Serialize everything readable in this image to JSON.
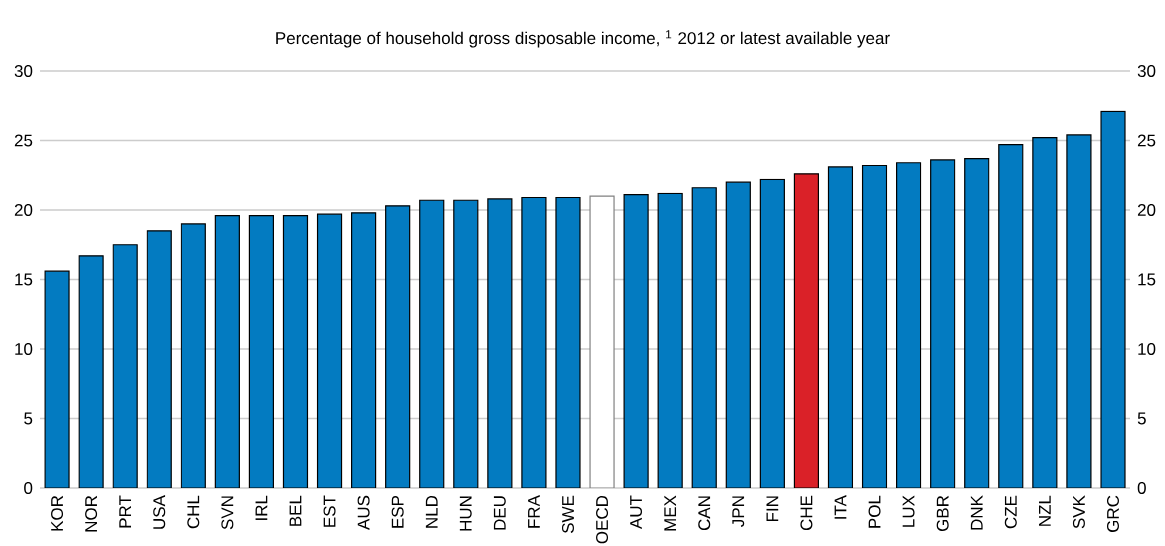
{
  "chart_data": {
    "type": "bar",
    "title": "Percentage of household gross disposable income, $^{1}$ 2012 or latest available year",
    "categories": [
      "KOR",
      "NOR",
      "PRT",
      "USA",
      "CHL",
      "SVN",
      "IRL",
      "BEL",
      "EST",
      "AUS",
      "ESP",
      "NLD",
      "HUN",
      "DEU",
      "FRA",
      "SWE",
      "OECD",
      "AUT",
      "MEX",
      "CAN",
      "JPN",
      "FIN",
      "CHE",
      "ITA",
      "POL",
      "LUX",
      "GBR",
      "DNK",
      "CZE",
      "NZL",
      "SVK",
      "GRC"
    ],
    "values": [
      15.6,
      16.7,
      17.5,
      18.5,
      19.0,
      19.6,
      19.6,
      19.6,
      19.7,
      19.8,
      20.3,
      20.7,
      20.7,
      20.8,
      20.9,
      20.9,
      21.0,
      21.1,
      21.2,
      21.6,
      22.0,
      22.2,
      22.6,
      23.1,
      23.2,
      23.4,
      23.6,
      23.7,
      24.7,
      25.2,
      25.4,
      27.1
    ],
    "colors": [
      "#037bc1",
      "#037bc1",
      "#037bc1",
      "#037bc1",
      "#037bc1",
      "#037bc1",
      "#037bc1",
      "#037bc1",
      "#037bc1",
      "#037bc1",
      "#037bc1",
      "#037bc1",
      "#037bc1",
      "#037bc1",
      "#037bc1",
      "#037bc1",
      "#ffffff",
      "#037bc1",
      "#037bc1",
      "#037bc1",
      "#037bc1",
      "#037bc1",
      "#da2128",
      "#037bc1",
      "#037bc1",
      "#037bc1",
      "#037bc1",
      "#037bc1",
      "#037bc1",
      "#037bc1",
      "#037bc1",
      "#037bc1"
    ],
    "ylim": [
      0,
      30
    ],
    "yticks": [
      0,
      5,
      10,
      15,
      20,
      25,
      30
    ],
    "y2lim": [
      0,
      30
    ],
    "y2ticks": [
      0,
      5,
      10,
      15,
      20,
      25,
      30
    ],
    "grid": "y"
  }
}
